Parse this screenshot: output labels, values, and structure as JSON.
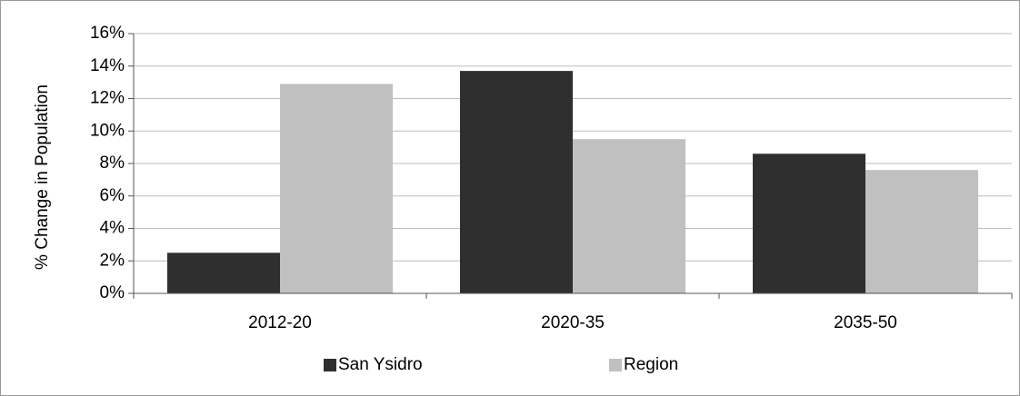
{
  "chart_data": {
    "type": "bar",
    "categories": [
      "2012-20",
      "2020-35",
      "2035-50"
    ],
    "series": [
      {
        "name": "San Ysidro",
        "values": [
          2.5,
          13.7,
          8.6
        ],
        "color": "#2f2f2f"
      },
      {
        "name": "Region",
        "values": [
          12.9,
          9.5,
          7.6
        ],
        "color": "#c0c0c0"
      }
    ],
    "title": "",
    "xlabel": "",
    "ylabel": "% Change in Population",
    "ylim": [
      0,
      16
    ],
    "yticks": [
      0,
      2,
      4,
      6,
      8,
      10,
      12,
      14,
      16
    ],
    "ytick_suffix": "%",
    "grid": true,
    "legend": "bottom-center"
  }
}
